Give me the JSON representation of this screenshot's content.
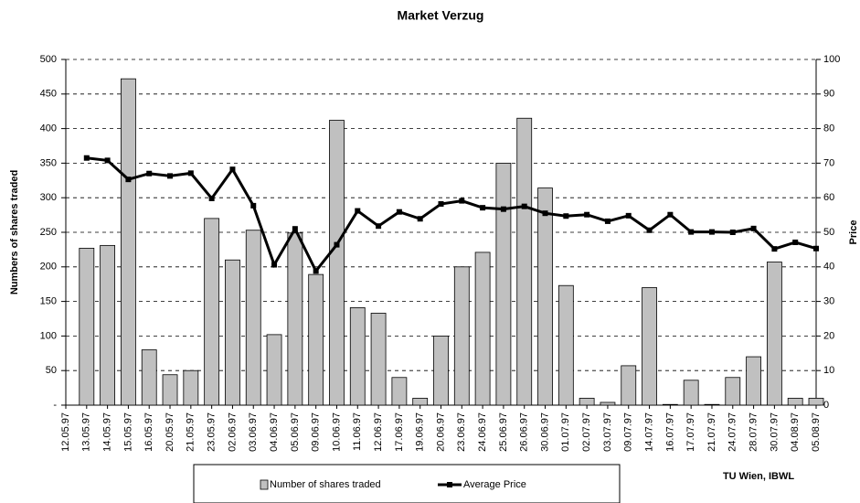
{
  "chart_data": {
    "type": "bar",
    "title": "Market Verzug",
    "y_label": "Numbers of shares traded",
    "y2_label": "Price",
    "annotation": "TU Wien, IBWL",
    "categories": [
      "12.05.97",
      "13.05.97",
      "14.05.97",
      "15.05.97",
      "16.05.97",
      "20.05.97",
      "21.05.97",
      "23.05.97",
      "02.06.97",
      "03.06.97",
      "04.06.97",
      "05.06.97",
      "09.06.97",
      "10.06.97",
      "11.06.97",
      "12.06.97",
      "17.06.97",
      "19.06.97",
      "20.06.97",
      "23.06.97",
      "24.06.97",
      "25.06.97",
      "26.06.97",
      "30.06.97",
      "01.07.97",
      "02.07.97",
      "03.07.97",
      "09.07.97",
      "14.07.97",
      "16.07.97",
      "17.07.97",
      "21.07.97",
      "24.07.97",
      "28.07.97",
      "30.07.97",
      "04.08.97",
      "05.08.97"
    ],
    "series": [
      {
        "name": "Number of shares traded",
        "type": "bar",
        "color": "#c0c0c0",
        "values": [
          null,
          227,
          231,
          472,
          80,
          44,
          50,
          270,
          210,
          253,
          102,
          249,
          189,
          412,
          141,
          133,
          40,
          10,
          100,
          200,
          221,
          350,
          415,
          314,
          173,
          10,
          4,
          57,
          170,
          1,
          36,
          1,
          40,
          70,
          207,
          10,
          10
        ]
      },
      {
        "name": "Average Price",
        "type": "line",
        "axis": "y2",
        "color": "#000000",
        "values": [
          null,
          71.5,
          70.8,
          65.3,
          67,
          66.3,
          67.1,
          59.8,
          68.2,
          57.7,
          40.6,
          51,
          38.8,
          46.4,
          56.2,
          51.8,
          55.9,
          53.9,
          58.2,
          59.1,
          57.1,
          56.7,
          57.5,
          55.5,
          54.7,
          55.1,
          53.2,
          54.8,
          50.6,
          55.1,
          50.1,
          50.1,
          50,
          51.1,
          45.2,
          47.1,
          45.3
        ]
      }
    ],
    "ylim": [
      0,
      500
    ],
    "yticks": [
      {
        "value": 0,
        "label": "-"
      },
      50,
      100,
      150,
      200,
      250,
      300,
      350,
      400,
      450,
      500
    ],
    "y2lim": [
      0,
      100
    ],
    "y2ticks": [
      0,
      10,
      20,
      30,
      40,
      50,
      60,
      70,
      80,
      90,
      100
    ],
    "grid": true
  }
}
